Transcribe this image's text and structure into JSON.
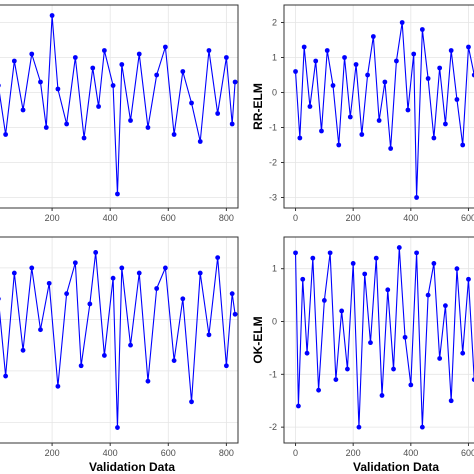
{
  "colors": {
    "series": "#0000ff",
    "grid": "#e5e5e5",
    "frame": "#333333",
    "background": "#ffffff"
  },
  "chart_data": [
    {
      "type": "line",
      "panel": "top-left",
      "ylabel": "",
      "xlabel": "",
      "xticks": [
        200,
        400,
        600,
        800
      ],
      "yticks": [],
      "xlim": [
        0,
        840
      ],
      "ylim": [
        -3.3,
        2.5
      ],
      "grid": true,
      "series": [
        {
          "x": [
            15,
            40,
            70,
            100,
            130,
            160,
            180,
            200,
            220,
            250,
            280,
            310,
            340,
            360,
            380,
            410,
            425,
            440,
            470,
            500,
            530,
            560,
            590,
            620,
            650,
            680,
            710,
            740,
            770,
            800,
            820,
            830
          ],
          "values": [
            0.2,
            -1.2,
            0.9,
            -0.5,
            1.1,
            0.3,
            -1.0,
            2.2,
            0.1,
            -0.9,
            1.0,
            -1.3,
            0.7,
            -0.4,
            1.2,
            0.2,
            -2.9,
            0.8,
            -0.8,
            1.1,
            -1.0,
            0.5,
            1.3,
            -1.2,
            0.6,
            -0.3,
            -1.4,
            1.2,
            -0.6,
            1.0,
            -0.9,
            0.3
          ]
        }
      ]
    },
    {
      "type": "line",
      "panel": "top-right",
      "ylabel": "RR-ELM",
      "xlabel": "",
      "xticks": [
        0,
        200,
        400,
        600
      ],
      "yticks": [
        -3,
        -2,
        -1,
        0,
        1,
        2
      ],
      "xlim": [
        -40,
        640
      ],
      "ylim": [
        -3.3,
        2.5
      ],
      "grid": true,
      "series": [
        {
          "x": [
            0,
            15,
            30,
            50,
            70,
            90,
            110,
            130,
            150,
            170,
            190,
            210,
            230,
            250,
            270,
            290,
            310,
            330,
            350,
            370,
            390,
            410,
            420,
            440,
            460,
            480,
            500,
            520,
            540,
            560,
            580,
            600,
            620
          ],
          "values": [
            0.6,
            -1.3,
            1.3,
            -0.4,
            0.9,
            -1.1,
            1.2,
            0.2,
            -1.5,
            1.0,
            -0.7,
            0.8,
            -1.2,
            0.5,
            1.6,
            -0.8,
            0.3,
            -1.6,
            0.9,
            2.0,
            -0.5,
            1.1,
            -3.0,
            1.8,
            0.4,
            -1.3,
            0.7,
            -0.9,
            1.2,
            -0.2,
            -1.5,
            1.3,
            0.5
          ]
        }
      ]
    },
    {
      "type": "line",
      "panel": "bottom-left",
      "ylabel": "",
      "xlabel": "Validation Data",
      "xticks": [
        200,
        400,
        600,
        800
      ],
      "yticks": [],
      "xlim": [
        0,
        840
      ],
      "ylim": [
        -2.4,
        1.6
      ],
      "grid": true,
      "series": [
        {
          "x": [
            15,
            40,
            70,
            100,
            130,
            160,
            190,
            220,
            250,
            280,
            300,
            330,
            350,
            380,
            410,
            425,
            440,
            470,
            500,
            530,
            560,
            590,
            620,
            650,
            680,
            710,
            740,
            770,
            800,
            820,
            830
          ],
          "values": [
            0.4,
            -1.1,
            0.9,
            -0.6,
            1.0,
            -0.2,
            0.7,
            -1.3,
            0.5,
            1.1,
            -0.9,
            0.3,
            1.3,
            -0.7,
            0.8,
            -2.1,
            1.0,
            -0.5,
            0.9,
            -1.2,
            0.6,
            1.0,
            -0.8,
            0.4,
            -1.6,
            0.9,
            -0.3,
            1.2,
            -0.9,
            0.5,
            0.1
          ]
        }
      ]
    },
    {
      "type": "line",
      "panel": "bottom-right",
      "ylabel": "OK-ELM",
      "xlabel": "Validation Data",
      "xticks": [
        0,
        200,
        400,
        600
      ],
      "yticks": [
        -2,
        -1,
        0,
        1
      ],
      "xlim": [
        -40,
        640
      ],
      "ylim": [
        -2.3,
        1.6
      ],
      "grid": true,
      "series": [
        {
          "x": [
            0,
            10,
            25,
            40,
            60,
            80,
            100,
            120,
            140,
            160,
            180,
            200,
            220,
            240,
            260,
            280,
            300,
            320,
            340,
            360,
            380,
            400,
            420,
            440,
            460,
            480,
            500,
            520,
            540,
            560,
            580,
            600,
            620
          ],
          "values": [
            1.3,
            -1.6,
            0.8,
            -0.6,
            1.2,
            -1.3,
            0.4,
            1.3,
            -1.1,
            0.2,
            -0.9,
            1.1,
            -2.0,
            0.9,
            -0.4,
            1.2,
            -1.4,
            0.6,
            -0.9,
            1.4,
            -0.3,
            -1.2,
            1.3,
            -2.0,
            0.5,
            1.1,
            -0.7,
            0.3,
            -1.5,
            1.0,
            -0.6,
            0.8,
            -1.1
          ]
        }
      ]
    }
  ]
}
